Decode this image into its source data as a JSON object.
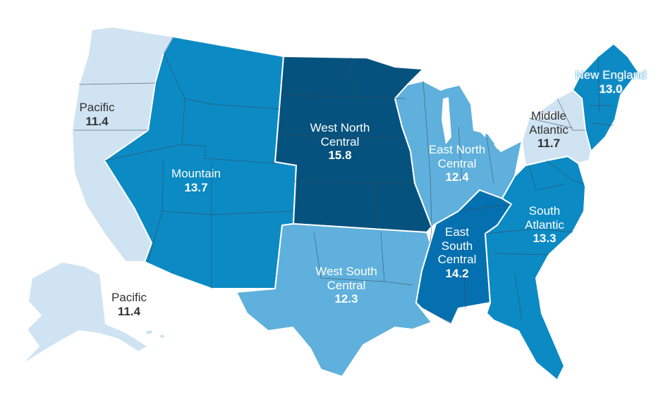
{
  "colors": {
    "c_11": "#cfe3f2",
    "c_12": "#5fb0dc",
    "c_13": "#0b8ac4",
    "c_14": "#0570b0",
    "c_15": "#06527f",
    "label_light": "#ffffff",
    "label_dark": "#333333"
  },
  "regions": [
    {
      "id": "pacific",
      "name": "Pacific",
      "value": "11.4"
    },
    {
      "id": "pacific_ak",
      "name": "Pacific",
      "value": "11.4"
    },
    {
      "id": "mountain",
      "name": "Mountain",
      "value": "13.7"
    },
    {
      "id": "west_north_central",
      "name": "West North Central",
      "line1": "West North",
      "line2": "Central",
      "value": "15.8"
    },
    {
      "id": "west_south_central",
      "name": "West South Central",
      "line1": "West South",
      "line2": "Central",
      "value": "12.3"
    },
    {
      "id": "east_north_central",
      "name": "East North Central",
      "line1": "East North",
      "line2": "Central",
      "value": "12.4"
    },
    {
      "id": "east_south_central",
      "name": "East South Central",
      "line1": "East",
      "line2": "South",
      "line3": "Central",
      "value": "14.2"
    },
    {
      "id": "south_atlantic",
      "name": "South Atlantic",
      "line1": "South",
      "line2": "Atlantic",
      "value": "13.3"
    },
    {
      "id": "middle_atlantic",
      "name": "Middle Atlantic",
      "line1": "Middle",
      "line2": "Atlantic",
      "value": "11.7"
    },
    {
      "id": "new_england",
      "name": "New England",
      "value": "13.0"
    }
  ]
}
